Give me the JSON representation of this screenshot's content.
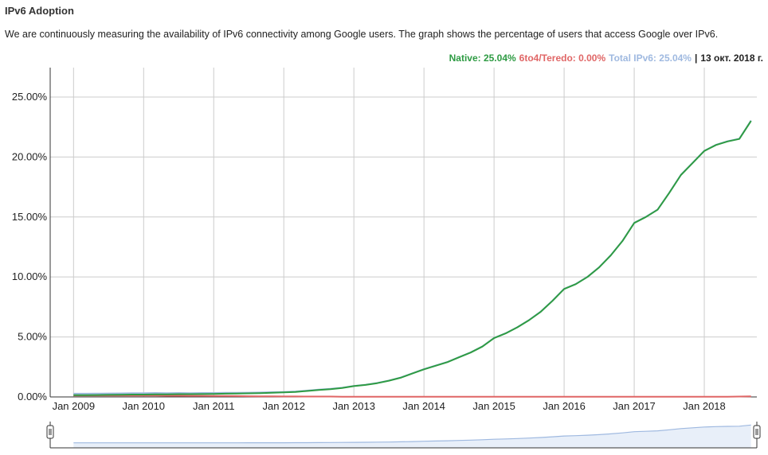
{
  "chart_data": {
    "type": "line",
    "title": "IPv6 Adoption",
    "subtitle": "We are continuously measuring the availability of IPv6 connectivity among Google users. The graph shows the percentage of users that access Google over IPv6.",
    "separator": "|",
    "date_label": "13 окт. 2018 г.",
    "x": [
      "2009-01",
      "2009-03",
      "2009-05",
      "2009-07",
      "2009-09",
      "2009-11",
      "2010-01",
      "2010-03",
      "2010-05",
      "2010-07",
      "2010-09",
      "2010-11",
      "2011-01",
      "2011-03",
      "2011-05",
      "2011-07",
      "2011-09",
      "2011-11",
      "2012-01",
      "2012-03",
      "2012-05",
      "2012-07",
      "2012-09",
      "2012-11",
      "2013-01",
      "2013-03",
      "2013-05",
      "2013-07",
      "2013-09",
      "2013-11",
      "2014-01",
      "2014-03",
      "2014-05",
      "2014-07",
      "2014-09",
      "2014-11",
      "2015-01",
      "2015-03",
      "2015-05",
      "2015-07",
      "2015-09",
      "2015-11",
      "2016-01",
      "2016-03",
      "2016-05",
      "2016-07",
      "2016-09",
      "2016-11",
      "2017-01",
      "2017-03",
      "2017-05",
      "2017-07",
      "2017-09",
      "2017-11",
      "2018-01",
      "2018-03",
      "2018-05",
      "2018-07",
      "2018-09"
    ],
    "series": [
      {
        "name": "Native: 25.04%",
        "color": "#2e9b43",
        "values": [
          0.15,
          0.15,
          0.16,
          0.17,
          0.18,
          0.2,
          0.2,
          0.21,
          0.22,
          0.23,
          0.23,
          0.24,
          0.25,
          0.27,
          0.28,
          0.3,
          0.32,
          0.35,
          0.38,
          0.42,
          0.5,
          0.58,
          0.65,
          0.75,
          0.9,
          1.0,
          1.15,
          1.35,
          1.6,
          1.95,
          2.3,
          2.6,
          2.9,
          3.3,
          3.7,
          4.2,
          4.9,
          5.3,
          5.8,
          6.4,
          7.1,
          8.0,
          9.0,
          9.4,
          10.0,
          10.8,
          11.8,
          13.0,
          14.5,
          15.0,
          15.6,
          17.0,
          18.5,
          19.5,
          20.5,
          21.0,
          21.3,
          21.5,
          23.0
        ]
      },
      {
        "name": "6to4/Teredo: 0.00%",
        "color": "#e06666",
        "values": [
          0.12,
          0.12,
          0.12,
          0.12,
          0.12,
          0.12,
          0.12,
          0.12,
          0.1,
          0.1,
          0.09,
          0.09,
          0.08,
          0.08,
          0.07,
          0.06,
          0.05,
          0.05,
          0.04,
          0.04,
          0.03,
          0.03,
          0.03,
          0.02,
          0.02,
          0.02,
          0.02,
          0.02,
          0.02,
          0.02,
          0.02,
          0.02,
          0.02,
          0.02,
          0.02,
          0.02,
          0.02,
          0.02,
          0.02,
          0.02,
          0.02,
          0.02,
          0.02,
          0.02,
          0.02,
          0.02,
          0.02,
          0.02,
          0.02,
          0.02,
          0.02,
          0.02,
          0.02,
          0.02,
          0.02,
          0.02,
          0.02,
          0.03,
          0.05
        ]
      },
      {
        "name": "Total IPv6: 25.04%",
        "color": "#9fb9e0",
        "values": [
          0.27,
          0.27,
          0.28,
          0.29,
          0.3,
          0.32,
          0.32,
          0.33,
          0.32,
          0.33,
          0.32,
          0.33,
          0.33,
          0.35,
          0.35,
          0.36,
          0.37,
          0.4,
          0.42,
          0.46,
          0.53,
          0.61,
          0.68,
          0.77,
          0.92,
          1.02,
          1.17,
          1.37,
          1.62,
          1.97,
          2.32,
          2.62,
          2.92,
          3.32,
          3.72,
          4.22,
          4.92,
          5.32,
          5.82,
          6.42,
          7.12,
          8.02,
          9.02,
          9.42,
          10.02,
          10.82,
          11.82,
          13.02,
          14.52,
          15.02,
          15.62,
          17.02,
          18.52,
          19.52,
          20.52,
          21.02,
          21.32,
          21.53,
          23.05
        ]
      }
    ],
    "xlim": [
      "2008-09",
      "2018-10"
    ],
    "xticks": [
      {
        "value": "2009-01",
        "label": "Jan 2009"
      },
      {
        "value": "2010-01",
        "label": "Jan 2010"
      },
      {
        "value": "2011-01",
        "label": "Jan 2011"
      },
      {
        "value": "2012-01",
        "label": "Jan 2012"
      },
      {
        "value": "2013-01",
        "label": "Jan 2013"
      },
      {
        "value": "2014-01",
        "label": "Jan 2014"
      },
      {
        "value": "2015-01",
        "label": "Jan 2015"
      },
      {
        "value": "2016-01",
        "label": "Jan 2016"
      },
      {
        "value": "2017-01",
        "label": "Jan 2017"
      },
      {
        "value": "2018-01",
        "label": "Jan 2018"
      }
    ],
    "ylim": [
      0,
      27.45
    ],
    "yticks": [
      {
        "value": 0,
        "label": "0.00%"
      },
      {
        "value": 5,
        "label": "5.00%"
      },
      {
        "value": 10,
        "label": "10.00%"
      },
      {
        "value": 15,
        "label": "15.00%"
      },
      {
        "value": 20,
        "label": "20.00%"
      },
      {
        "value": 25,
        "label": "25.00%"
      }
    ],
    "grid": true
  }
}
